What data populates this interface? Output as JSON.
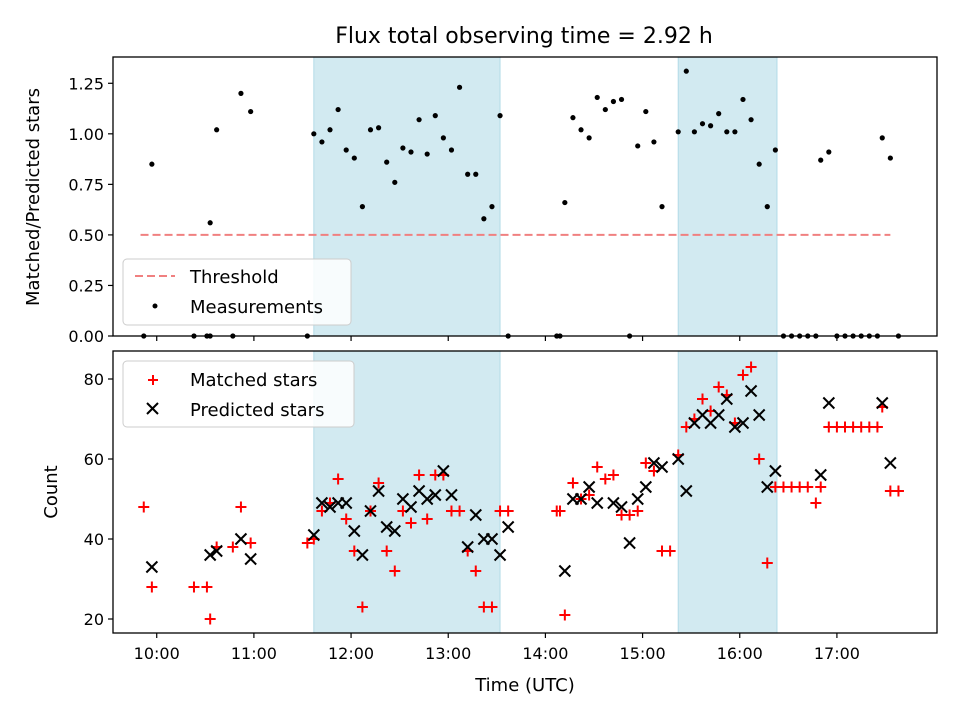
{
  "chart_data": [
    {
      "type": "scatter",
      "title": "Flux total observing time = 2.92 h",
      "xlabel": "",
      "ylabel": "Matched/Predicted stars",
      "xlim_hours": [
        9.55,
        18.03
      ],
      "ylim": [
        0,
        1.38
      ],
      "yticks": [
        0.0,
        0.25,
        0.5,
        0.75,
        1.0,
        1.25
      ],
      "ytick_labels": [
        "0.00",
        "0.25",
        "0.50",
        "0.75",
        "1.00",
        "1.25"
      ],
      "grid": false,
      "legend_position": "lower-left",
      "shaded_intervals": [
        [
          "11:37",
          "13:32"
        ],
        [
          "15:22",
          "16:23"
        ]
      ],
      "shade_color": "#add8e6",
      "threshold": {
        "name": "Threshold",
        "value": 0.5,
        "x_range": [
          "09:50",
          "17:33"
        ],
        "color": "#f08080"
      },
      "series": [
        {
          "name": "Measurements",
          "color": "#000000",
          "points": [
            [
              "09:52",
              0.0
            ],
            [
              "09:57",
              0.85
            ],
            [
              "10:23",
              0.0
            ],
            [
              "10:31",
              0.0
            ],
            [
              "10:33",
              0.0
            ],
            [
              "10:33",
              0.56
            ],
            [
              "10:37",
              1.02
            ],
            [
              "10:47",
              0.0
            ],
            [
              "10:52",
              1.2
            ],
            [
              "10:58",
              1.11
            ],
            [
              "11:33",
              0.0
            ],
            [
              "11:37",
              1.0
            ],
            [
              "11:42",
              0.96
            ],
            [
              "11:47",
              1.02
            ],
            [
              "11:52",
              1.12
            ],
            [
              "11:57",
              0.92
            ],
            [
              "12:02",
              0.88
            ],
            [
              "12:07",
              0.64
            ],
            [
              "12:12",
              1.02
            ],
            [
              "12:17",
              1.03
            ],
            [
              "12:22",
              0.86
            ],
            [
              "12:27",
              0.76
            ],
            [
              "12:32",
              0.93
            ],
            [
              "12:37",
              0.91
            ],
            [
              "12:42",
              1.07
            ],
            [
              "12:47",
              0.9
            ],
            [
              "12:52",
              1.09
            ],
            [
              "12:57",
              0.98
            ],
            [
              "13:02",
              0.92
            ],
            [
              "13:07",
              1.23
            ],
            [
              "13:12",
              0.8
            ],
            [
              "13:17",
              0.8
            ],
            [
              "13:22",
              0.58
            ],
            [
              "13:27",
              0.64
            ],
            [
              "13:32",
              1.09
            ],
            [
              "13:37",
              0.0
            ],
            [
              "14:07",
              0.0
            ],
            [
              "14:09",
              0.0
            ],
            [
              "14:12",
              0.66
            ],
            [
              "14:17",
              1.08
            ],
            [
              "14:22",
              1.02
            ],
            [
              "14:27",
              0.98
            ],
            [
              "14:32",
              1.18
            ],
            [
              "14:37",
              1.12
            ],
            [
              "14:42",
              1.16
            ],
            [
              "14:47",
              1.17
            ],
            [
              "14:52",
              0.0
            ],
            [
              "14:57",
              0.94
            ],
            [
              "15:02",
              1.11
            ],
            [
              "15:07",
              0.96
            ],
            [
              "15:12",
              0.64
            ],
            [
              "15:22",
              1.01
            ],
            [
              "15:27",
              1.31
            ],
            [
              "15:32",
              1.01
            ],
            [
              "15:37",
              1.05
            ],
            [
              "15:42",
              1.04
            ],
            [
              "15:47",
              1.1
            ],
            [
              "15:52",
              1.01
            ],
            [
              "15:57",
              1.01
            ],
            [
              "16:02",
              1.17
            ],
            [
              "16:07",
              1.07
            ],
            [
              "16:12",
              0.85
            ],
            [
              "16:17",
              0.64
            ],
            [
              "16:22",
              0.92
            ],
            [
              "16:27",
              0.0
            ],
            [
              "16:32",
              0.0
            ],
            [
              "16:37",
              0.0
            ],
            [
              "16:42",
              0.0
            ],
            [
              "16:47",
              0.0
            ],
            [
              "16:50",
              0.87
            ],
            [
              "16:55",
              0.91
            ],
            [
              "17:00",
              0.0
            ],
            [
              "17:05",
              0.0
            ],
            [
              "17:10",
              0.0
            ],
            [
              "17:15",
              0.0
            ],
            [
              "17:20",
              0.0
            ],
            [
              "17:25",
              0.0
            ],
            [
              "17:28",
              0.98
            ],
            [
              "17:33",
              0.88
            ],
            [
              "17:38",
              0.0
            ]
          ]
        }
      ]
    },
    {
      "type": "scatter",
      "title": "",
      "xlabel": "Time (UTC)",
      "ylabel": "Count",
      "xlim_hours": [
        9.55,
        18.03
      ],
      "ylim": [
        16.5,
        87
      ],
      "xticks": [
        "10:00",
        "11:00",
        "12:00",
        "13:00",
        "14:00",
        "15:00",
        "16:00",
        "17:00"
      ],
      "yticks": [
        20,
        40,
        60,
        80
      ],
      "ytick_labels": [
        "20",
        "40",
        "60",
        "80"
      ],
      "grid": false,
      "legend_position": "upper-left",
      "shaded_intervals": [
        [
          "11:37",
          "13:32"
        ],
        [
          "15:22",
          "16:23"
        ]
      ],
      "shade_color": "#add8e6",
      "series": [
        {
          "name": "Matched stars",
          "marker": "plus",
          "color": "#ff0000",
          "points": [
            [
              "09:52",
              48
            ],
            [
              "09:57",
              28
            ],
            [
              "10:23",
              28
            ],
            [
              "10:31",
              28
            ],
            [
              "10:33",
              20
            ],
            [
              "10:37",
              38
            ],
            [
              "10:47",
              38
            ],
            [
              "10:52",
              48
            ],
            [
              "10:58",
              39
            ],
            [
              "11:33",
              39
            ],
            [
              "11:37",
              40
            ],
            [
              "11:42",
              47
            ],
            [
              "11:47",
              49
            ],
            [
              "11:52",
              55
            ],
            [
              "11:57",
              45
            ],
            [
              "12:02",
              37
            ],
            [
              "12:07",
              23
            ],
            [
              "12:12",
              47
            ],
            [
              "12:17",
              54
            ],
            [
              "12:22",
              37
            ],
            [
              "12:27",
              32
            ],
            [
              "12:32",
              47
            ],
            [
              "12:37",
              44
            ],
            [
              "12:42",
              56
            ],
            [
              "12:47",
              45
            ],
            [
              "12:52",
              56
            ],
            [
              "12:57",
              56
            ],
            [
              "13:02",
              47
            ],
            [
              "13:07",
              47
            ],
            [
              "13:12",
              37
            ],
            [
              "13:17",
              32
            ],
            [
              "13:22",
              23
            ],
            [
              "13:27",
              23
            ],
            [
              "13:32",
              47
            ],
            [
              "13:37",
              47
            ],
            [
              "14:07",
              47
            ],
            [
              "14:09",
              47
            ],
            [
              "14:12",
              21
            ],
            [
              "14:17",
              54
            ],
            [
              "14:22",
              50
            ],
            [
              "14:27",
              51
            ],
            [
              "14:32",
              58
            ],
            [
              "14:37",
              55
            ],
            [
              "14:42",
              56
            ],
            [
              "14:47",
              46
            ],
            [
              "14:52",
              46
            ],
            [
              "14:57",
              47
            ],
            [
              "15:02",
              59
            ],
            [
              "15:07",
              57
            ],
            [
              "15:12",
              37
            ],
            [
              "15:17",
              37
            ],
            [
              "15:22",
              61
            ],
            [
              "15:27",
              68
            ],
            [
              "15:32",
              70
            ],
            [
              "15:37",
              75
            ],
            [
              "15:42",
              72
            ],
            [
              "15:47",
              78
            ],
            [
              "15:52",
              76
            ],
            [
              "15:57",
              69
            ],
            [
              "16:02",
              81
            ],
            [
              "16:07",
              83
            ],
            [
              "16:12",
              60
            ],
            [
              "16:17",
              34
            ],
            [
              "16:22",
              53
            ],
            [
              "16:27",
              53
            ],
            [
              "16:32",
              53
            ],
            [
              "16:37",
              53
            ],
            [
              "16:42",
              53
            ],
            [
              "16:47",
              49
            ],
            [
              "16:50",
              53
            ],
            [
              "16:55",
              68
            ],
            [
              "17:00",
              68
            ],
            [
              "17:05",
              68
            ],
            [
              "17:10",
              68
            ],
            [
              "17:15",
              68
            ],
            [
              "17:20",
              68
            ],
            [
              "17:25",
              68
            ],
            [
              "17:28",
              73
            ],
            [
              "17:33",
              52
            ],
            [
              "17:38",
              52
            ]
          ]
        },
        {
          "name": "Predicted stars",
          "marker": "x",
          "color": "#000000",
          "points": [
            [
              "09:57",
              33
            ],
            [
              "10:33",
              36
            ],
            [
              "10:37",
              37
            ],
            [
              "10:52",
              40
            ],
            [
              "10:58",
              35
            ],
            [
              "11:37",
              41
            ],
            [
              "11:42",
              49
            ],
            [
              "11:47",
              48
            ],
            [
              "11:52",
              49
            ],
            [
              "11:57",
              49
            ],
            [
              "12:02",
              42
            ],
            [
              "12:07",
              36
            ],
            [
              "12:12",
              47
            ],
            [
              "12:17",
              52
            ],
            [
              "12:22",
              43
            ],
            [
              "12:27",
              42
            ],
            [
              "12:32",
              50
            ],
            [
              "12:37",
              48
            ],
            [
              "12:42",
              52
            ],
            [
              "12:47",
              50
            ],
            [
              "12:52",
              51
            ],
            [
              "12:57",
              57
            ],
            [
              "13:02",
              51
            ],
            [
              "13:12",
              38
            ],
            [
              "13:17",
              46
            ],
            [
              "13:22",
              40
            ],
            [
              "13:27",
              40
            ],
            [
              "13:32",
              36
            ],
            [
              "13:37",
              43
            ],
            [
              "14:12",
              32
            ],
            [
              "14:17",
              50
            ],
            [
              "14:22",
              50
            ],
            [
              "14:27",
              53
            ],
            [
              "14:32",
              49
            ],
            [
              "14:42",
              49
            ],
            [
              "14:47",
              48
            ],
            [
              "14:52",
              39
            ],
            [
              "14:57",
              50
            ],
            [
              "15:02",
              53
            ],
            [
              "15:07",
              59
            ],
            [
              "15:12",
              58
            ],
            [
              "15:22",
              60
            ],
            [
              "15:27",
              52
            ],
            [
              "15:32",
              69
            ],
            [
              "15:37",
              71
            ],
            [
              "15:42",
              69
            ],
            [
              "15:47",
              71
            ],
            [
              "15:52",
              75
            ],
            [
              "15:57",
              68
            ],
            [
              "16:02",
              69
            ],
            [
              "16:07",
              77
            ],
            [
              "16:12",
              71
            ],
            [
              "16:17",
              53
            ],
            [
              "16:22",
              57
            ],
            [
              "16:50",
              56
            ],
            [
              "16:55",
              74
            ],
            [
              "17:28",
              74
            ],
            [
              "17:33",
              59
            ]
          ]
        }
      ]
    }
  ]
}
